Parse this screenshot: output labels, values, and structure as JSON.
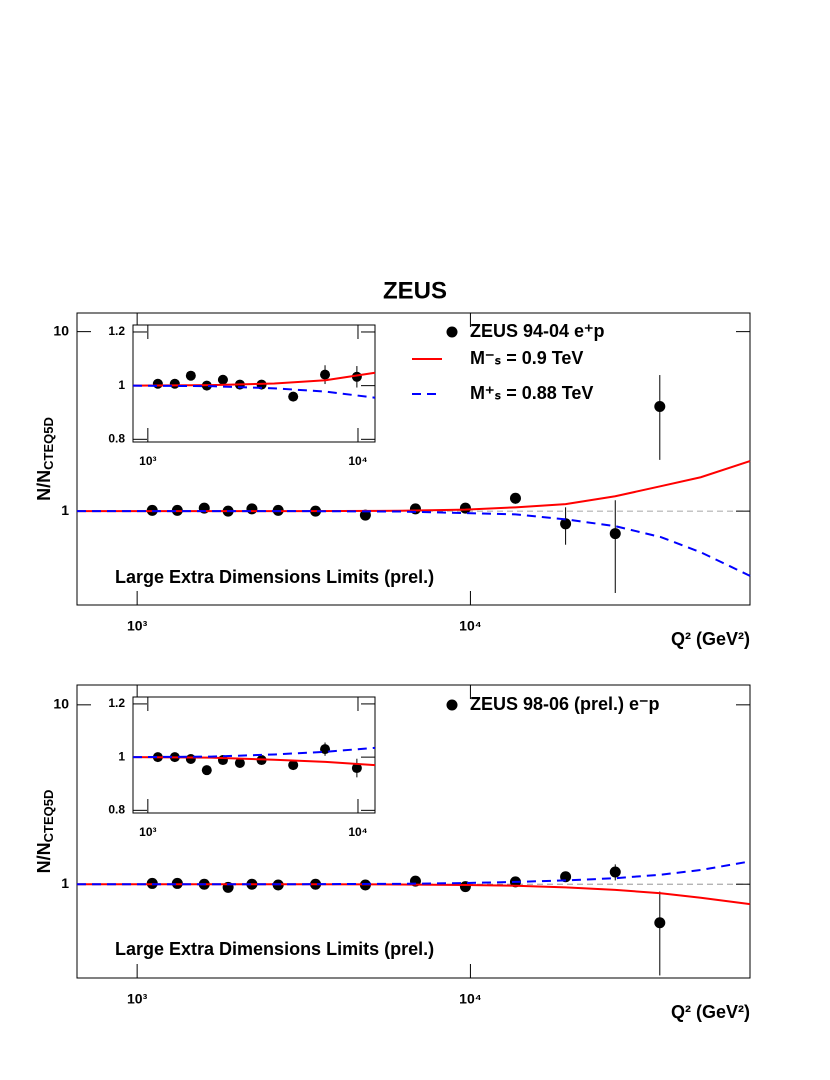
{
  "chart_data": [
    {
      "type": "scatter",
      "title": "ZEUS",
      "y_label": [
        "N/N",
        "CTEQ5D"
      ],
      "x_label": "Q² (GeV²)",
      "annotation": "Large Extra Dimensions Limits (prel.)",
      "xlog": true,
      "ylog": true,
      "xlim": [
        660,
        69000
      ],
      "ylim": [
        0.3,
        12.7
      ],
      "xticks": [
        {
          "value": 1000,
          "label": "10³"
        },
        {
          "value": 10000,
          "label": "10⁴"
        }
      ],
      "yticks": [
        1,
        10
      ],
      "series": [
        {
          "name": "ZEUS 94-04 e⁺p",
          "color": "#000000",
          "style": "points",
          "x": [
            1110,
            1320,
            1590,
            1875,
            2210,
            2650,
            3430,
            4840,
            6840,
            9660,
            13650,
            19300,
            27200,
            37000
          ],
          "values": [
            1.01,
            1.01,
            1.04,
            1.0,
            1.03,
            1.01,
            1.0,
            0.95,
            1.03,
            1.04,
            1.18,
            0.85,
            0.75,
            3.83
          ],
          "errors": [
            0.02,
            0.02,
            0.02,
            0.02,
            0.02,
            0.02,
            0.02,
            0.03,
            0.04,
            0.04,
            0.08,
            0.2,
            0.4,
            1.9
          ]
        },
        {
          "name": "M⁻ₛ = 0.9 TeV",
          "color": "#ff0000",
          "style": "solid",
          "x": [
            660,
            1546,
            3083,
            6165,
            9660,
            13650,
            19300,
            27200,
            37250,
            49100,
            69000
          ],
          "values": [
            1,
            1,
            1,
            1.005,
            1.02,
            1.05,
            1.094,
            1.21,
            1.377,
            1.545,
            1.9
          ]
        },
        {
          "name": "M⁺ₛ = 0.88 TeV",
          "color": "#0000ff",
          "style": "dashed",
          "x": [
            660,
            1546,
            3083,
            6165,
            9660,
            13650,
            19300,
            27200,
            37250,
            49100,
            69000
          ],
          "values": [
            1,
            1,
            1,
            0.995,
            0.975,
            0.96,
            0.9,
            0.825,
            0.717,
            0.59,
            0.436
          ]
        }
      ]
    },
    {
      "type": "scatter",
      "xlog": true,
      "ylog": false,
      "xlim": [
        850,
        12050
      ],
      "ylim": [
        0.79,
        1.226
      ],
      "xticks": [
        {
          "value": 1000,
          "label": "10³"
        },
        {
          "value": 10000,
          "label": "10⁴"
        }
      ],
      "yticks": [
        0.8,
        1,
        1.2
      ],
      "series": [
        {
          "color": "#000000",
          "style": "points",
          "x": [
            1116,
            1344,
            1602,
            1908,
            2277,
            2742,
            3477,
            4917,
            6970,
            9880
          ],
          "values": [
            1.007,
            1.007,
            1.037,
            1.0,
            1.022,
            1.004,
            1.004,
            0.959,
            1.041,
            1.033
          ],
          "errors": [
            0.01,
            0.01,
            0.01,
            0.01,
            0.012,
            0.012,
            0.013,
            0.015,
            0.035,
            0.04
          ]
        },
        {
          "color": "#ff0000",
          "style": "solid",
          "x": [
            850,
            2000,
            4000,
            7000,
            12050
          ],
          "values": [
            1,
            1.002,
            1.008,
            1.02,
            1.048
          ]
        },
        {
          "color": "#0000ff",
          "style": "dashed",
          "x": [
            850,
            2000,
            4000,
            7000,
            12050
          ],
          "values": [
            1,
            0.998,
            0.99,
            0.978,
            0.955
          ]
        }
      ]
    },
    {
      "type": "scatter",
      "y_label": [
        "N/N",
        "CTEQ5D"
      ],
      "x_label": "Q² (GeV²)",
      "annotation": "Large Extra Dimensions Limits (prel.)",
      "xlog": true,
      "ylog": true,
      "xlim": [
        660,
        69000
      ],
      "ylim": [
        0.3,
        12.9
      ],
      "xticks": [
        {
          "value": 1000,
          "label": "10³"
        },
        {
          "value": 10000,
          "label": "10⁴"
        }
      ],
      "yticks": [
        1,
        10
      ],
      "series": [
        {
          "name": "ZEUS 98-06 (prel.) e⁻p",
          "color": "#000000",
          "style": "points",
          "x": [
            1110,
            1320,
            1590,
            1875,
            2210,
            2650,
            3430,
            4840,
            6840,
            9660,
            13650,
            19300,
            27200,
            37000
          ],
          "values": [
            1.01,
            1.01,
            1.0,
            0.96,
            1.0,
            0.99,
            1.0,
            0.99,
            1.04,
            0.97,
            1.03,
            1.1,
            1.17,
            0.61
          ],
          "errors": [
            0.02,
            0.02,
            0.02,
            0.02,
            0.02,
            0.02,
            0.02,
            0.02,
            0.03,
            0.03,
            0.04,
            0.06,
            0.12,
            0.3
          ]
        },
        {
          "color": "#ff0000",
          "style": "solid",
          "x": [
            660,
            1546,
            3083,
            6165,
            9660,
            13650,
            19300,
            27200,
            37250,
            49100,
            69000
          ],
          "values": [
            1,
            1,
            1,
            0.997,
            0.99,
            0.98,
            0.96,
            0.93,
            0.89,
            0.84,
            0.774
          ]
        },
        {
          "color": "#0000ff",
          "style": "dashed",
          "x": [
            660,
            1546,
            3083,
            6165,
            9660,
            13650,
            19300,
            27200,
            37250,
            49100,
            69000
          ],
          "values": [
            1,
            1,
            1,
            1.005,
            1.015,
            1.03,
            1.05,
            1.08,
            1.13,
            1.2,
            1.34
          ]
        }
      ]
    },
    {
      "type": "scatter",
      "xlog": true,
      "ylog": false,
      "xlim": [
        850,
        12050
      ],
      "ylim": [
        0.79,
        1.226
      ],
      "xticks": [
        {
          "value": 1000,
          "label": "10³"
        },
        {
          "value": 10000,
          "label": "10⁴"
        }
      ],
      "yticks": [
        0.8,
        1,
        1.2
      ],
      "series": [
        {
          "color": "#000000",
          "style": "points",
          "x": [
            1116,
            1344,
            1602,
            1908,
            2277,
            2742,
            3477,
            4917,
            6970,
            9880
          ],
          "values": [
            1.0,
            1.0,
            0.993,
            0.951,
            0.989,
            0.978,
            0.989,
            0.97,
            1.03,
            0.959
          ],
          "errors": [
            0.01,
            0.01,
            0.01,
            0.01,
            0.012,
            0.012,
            0.013,
            0.015,
            0.025,
            0.035
          ]
        },
        {
          "color": "#ff0000",
          "style": "solid",
          "x": [
            850,
            2000,
            4000,
            7000,
            12050
          ],
          "values": [
            1,
            0.998,
            0.99,
            0.982,
            0.97
          ]
        },
        {
          "color": "#0000ff",
          "style": "dashed",
          "x": [
            850,
            2000,
            4000,
            7000,
            12050
          ],
          "values": [
            1,
            1.002,
            1.01,
            1.02,
            1.035
          ]
        }
      ]
    }
  ]
}
